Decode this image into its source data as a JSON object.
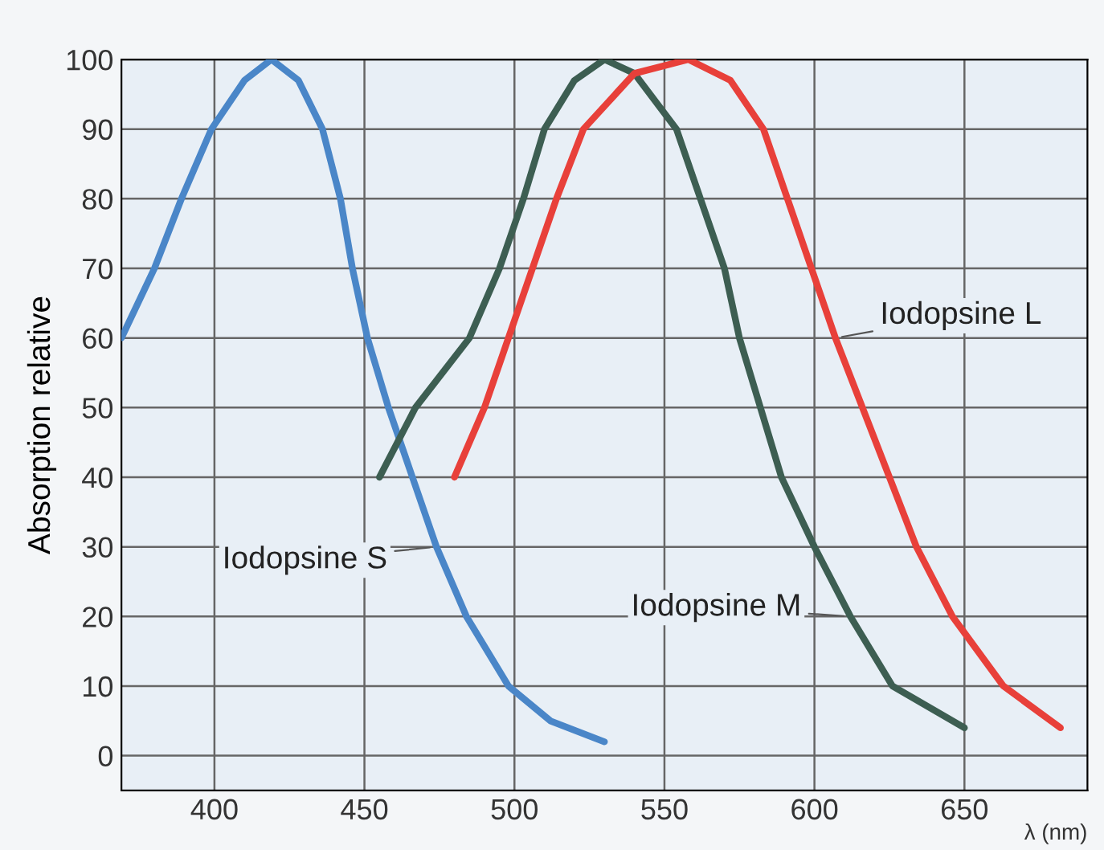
{
  "chart_data": {
    "type": "line",
    "ylabel": "Absorption relative",
    "xlabel": "λ (nm)",
    "xlim": [
      369,
      691
    ],
    "ylim": [
      -5,
      100
    ],
    "xticks": [
      400,
      450,
      500,
      550,
      600,
      650
    ],
    "yticks": [
      0,
      10,
      20,
      30,
      40,
      50,
      60,
      70,
      80,
      90,
      100
    ],
    "grid": true,
    "line_style": "solid",
    "marker": "none",
    "series": [
      {
        "name": "Iodopsine S",
        "color": "#4a86c8",
        "x": [
          369,
          380,
          389,
          399,
          410,
          419,
          428,
          436,
          442,
          446,
          451,
          458,
          466,
          474,
          484,
          498,
          512,
          530
        ],
        "values": [
          60,
          70,
          80,
          90,
          97,
          100,
          97,
          90,
          80,
          70,
          60,
          50,
          40,
          30,
          20,
          10,
          5,
          2
        ]
      },
      {
        "name": "Iodopsine M",
        "color": "#3d5e52",
        "x": [
          455,
          467,
          485,
          495,
          503,
          510,
          520,
          530,
          540,
          554,
          562,
          570,
          575,
          582,
          589,
          600,
          612,
          626,
          650
        ],
        "values": [
          40,
          50,
          60,
          70,
          80,
          90,
          97,
          100,
          98,
          90,
          80,
          70,
          60,
          50,
          40,
          30,
          20,
          10,
          4
        ]
      },
      {
        "name": "Iodopsine L",
        "color": "#e8403a",
        "x": [
          480,
          490,
          498,
          506,
          514,
          523,
          540,
          558,
          572,
          583,
          591,
          599,
          607,
          616,
          625,
          634,
          646,
          663,
          682
        ],
        "values": [
          40,
          50,
          60,
          70,
          80,
          90,
          98,
          100,
          97,
          90,
          80,
          70,
          60,
          50,
          40,
          30,
          20,
          10,
          4
        ]
      }
    ]
  }
}
